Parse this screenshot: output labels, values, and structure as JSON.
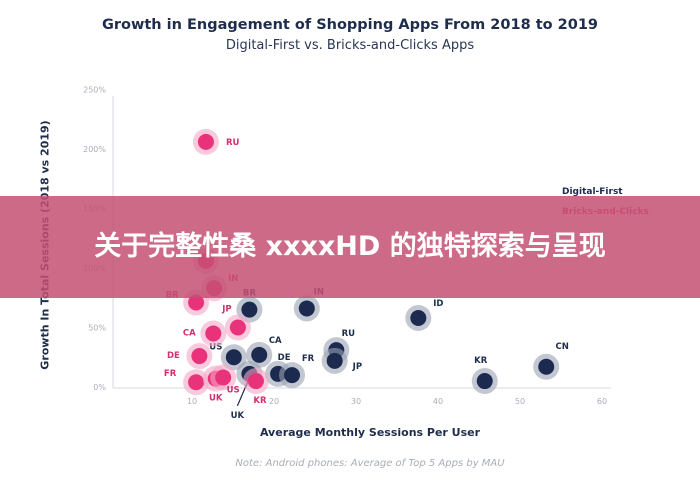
{
  "chart_data": {
    "type": "scatter",
    "title": "Growth in Engagement of Shopping Apps From 2018 to 2019",
    "subtitle": "Digital-First vs. Bricks-and-Clicks Apps",
    "xlabel": "Average Monthly Sessions Per User",
    "ylabel": "Growth In Total Sessions (2018 vs 2019)",
    "xlim": [
      5,
      60
    ],
    "ylim": [
      0,
      250
    ],
    "x_ticks": [
      "10",
      "20",
      "30",
      "40",
      "50",
      "60"
    ],
    "y_ticks": [
      "0%",
      "50%",
      "100%",
      "150%",
      "200%",
      "250%"
    ],
    "grid": false,
    "legend_position": "right",
    "note": "Note: Android phones: Average of Top 5 Apps by MAU",
    "series": [
      {
        "name": "Digital-First",
        "color": "#1b2a4e",
        "points": [
          {
            "label": "BR",
            "x": 17,
            "y": 65
          },
          {
            "label": "IN",
            "x": 24,
            "y": 66
          },
          {
            "label": "ID",
            "x": 37.6,
            "y": 58
          },
          {
            "label": "RU",
            "x": 27.6,
            "y": 31
          },
          {
            "label": "JP",
            "x": 27.4,
            "y": 22
          },
          {
            "label": "CN",
            "x": 53.2,
            "y": 17
          },
          {
            "label": "KR",
            "x": 45.7,
            "y": 5
          },
          {
            "label": "US",
            "x": 15.1,
            "y": 25
          },
          {
            "label": "CA",
            "x": 18.2,
            "y": 27
          },
          {
            "label": "DE",
            "x": 20.5,
            "y": 11
          },
          {
            "label": "FR",
            "x": 22.2,
            "y": 10
          },
          {
            "label": "UK",
            "x": 17,
            "y": 11
          }
        ]
      },
      {
        "name": "Bricks-and-Clicks",
        "color": "#e8337a",
        "points": [
          {
            "label": "RU",
            "x": 11.7,
            "y": 206
          },
          {
            "label": "",
            "x": 11.7,
            "y": 106
          },
          {
            "label": "IN",
            "x": 12.7,
            "y": 83
          },
          {
            "label": "BR",
            "x": 10.5,
            "y": 71
          },
          {
            "label": "JP",
            "x": 15.6,
            "y": 50
          },
          {
            "label": "CA",
            "x": 12.6,
            "y": 45
          },
          {
            "label": "DE",
            "x": 10.9,
            "y": 26
          },
          {
            "label": "FR",
            "x": 10.5,
            "y": 4
          },
          {
            "label": "UK",
            "x": 12.9,
            "y": 7
          },
          {
            "label": "US",
            "x": 13.8,
            "y": 8
          },
          {
            "label": "KR",
            "x": 17.8,
            "y": 5
          }
        ]
      }
    ]
  },
  "banner": {
    "text": "关于完整性桑 xxxxHD 的独特探索与呈现"
  }
}
